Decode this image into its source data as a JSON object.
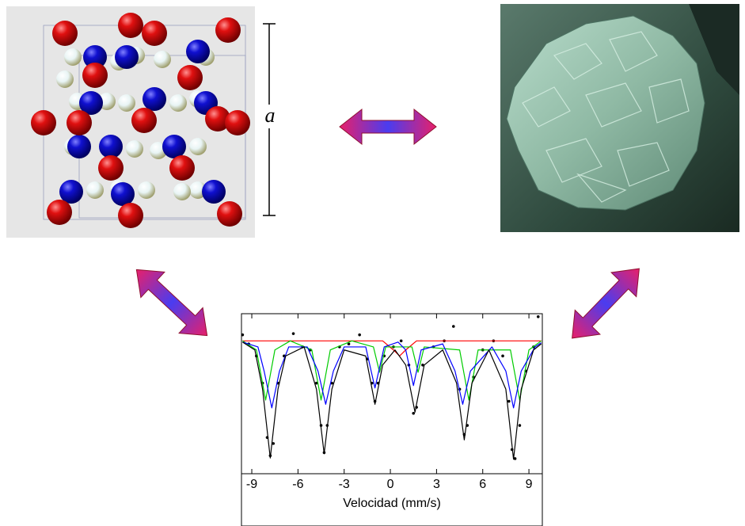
{
  "crystal_label": "a",
  "chart_data": {
    "type": "line",
    "xlabel": "Velocidad (mm/s)",
    "xlim": [
      -9.67,
      9.87
    ],
    "xticks": [
      -9,
      -6,
      -3,
      0,
      3,
      6,
      9
    ],
    "ylim": [
      0.78,
      1.045
    ],
    "series": [
      {
        "type": "scatter",
        "color": "#000000",
        "x": [
          -9.6,
          -9.2,
          -8.7,
          -8.3,
          -8.0,
          -7.8,
          -7.6,
          -7.3,
          -6.9,
          -6.3,
          -5.7,
          -5.2,
          -4.8,
          -4.5,
          -4.3,
          -4.1,
          -3.8,
          -3.3,
          -2.7,
          -2.0,
          -1.5,
          -1.2,
          -1.0,
          -0.8,
          -0.4,
          0.2,
          0.7,
          1.2,
          1.5,
          1.7,
          2.1,
          2.8,
          3.5,
          4.1,
          4.5,
          4.8,
          5.0,
          5.4,
          6.0,
          6.7,
          7.3,
          7.7,
          7.9,
          8.1,
          8.4,
          8.8,
          9.3,
          9.6
        ],
        "values": [
          1.01,
          0.995,
          0.975,
          0.93,
          0.84,
          0.81,
          0.83,
          0.93,
          0.975,
          1.012,
          0.99,
          0.985,
          0.93,
          0.86,
          0.815,
          0.86,
          0.93,
          0.99,
          0.995,
          1.01,
          0.97,
          0.93,
          0.9,
          0.93,
          0.975,
          0.99,
          1.0,
          0.96,
          0.88,
          0.89,
          0.96,
          0.99,
          1.0,
          1.024,
          0.92,
          0.845,
          0.86,
          0.94,
          0.985,
          1.0,
          0.975,
          0.9,
          0.82,
          0.805,
          0.86,
          0.95,
          0.99,
          1.04
        ]
      },
      {
        "type": "line",
        "color": "#ff0000",
        "x": [
          -9.6,
          -0.5,
          0.2,
          0.6,
          1.0,
          1.7,
          9.8
        ],
        "values": [
          1.0,
          1.0,
          0.985,
          0.975,
          0.985,
          1.0,
          1.0
        ]
      },
      {
        "type": "line",
        "color": "#00cc00",
        "x": [
          -9.6,
          -8.7,
          -8.1,
          -7.5,
          -6.5,
          -5.1,
          -4.5,
          -3.9,
          -2.5,
          -1.1,
          -0.7,
          -0.3,
          1.4,
          1.8,
          2.2,
          4.5,
          5.1,
          5.7,
          7.8,
          8.4,
          9.0,
          9.8
        ],
        "values": [
          1.0,
          0.985,
          0.902,
          0.985,
          1.0,
          0.985,
          0.902,
          0.985,
          1.0,
          0.99,
          0.948,
          0.99,
          0.99,
          0.948,
          0.99,
          0.985,
          0.902,
          0.985,
          0.985,
          0.902,
          0.985,
          1.0
        ]
      },
      {
        "type": "line",
        "color": "#0000ff",
        "x": [
          -9.6,
          -8.6,
          -8.2,
          -7.7,
          -7.2,
          -6.6,
          -5.4,
          -4.7,
          -4.2,
          -3.7,
          -3.0,
          -1.6,
          -1.0,
          -0.4,
          0.5,
          1.0,
          1.5,
          2.0,
          3.4,
          4.2,
          4.7,
          5.2,
          6.6,
          7.5,
          8.0,
          8.5,
          9.4,
          9.8
        ],
        "values": [
          0.998,
          0.99,
          0.95,
          0.889,
          0.95,
          0.99,
          0.99,
          0.95,
          0.895,
          0.95,
          0.99,
          0.99,
          0.922,
          0.99,
          0.998,
          0.985,
          0.926,
          0.985,
          0.995,
          0.95,
          0.895,
          0.95,
          0.99,
          0.95,
          0.889,
          0.95,
          0.99,
          0.997
        ]
      },
      {
        "type": "line",
        "color": "#000000",
        "x": [
          -9.6,
          -8.8,
          -8.3,
          -7.8,
          -7.3,
          -6.8,
          -5.6,
          -4.8,
          -4.3,
          -3.8,
          -3.0,
          -1.6,
          -1.0,
          -0.5,
          0.3,
          1.0,
          1.6,
          2.2,
          3.4,
          4.3,
          4.8,
          5.3,
          6.4,
          7.5,
          8.0,
          8.5,
          9.3,
          9.8
        ],
        "values": [
          0.998,
          0.985,
          0.92,
          0.806,
          0.92,
          0.975,
          0.99,
          0.92,
          0.813,
          0.92,
          0.985,
          0.975,
          0.895,
          0.96,
          0.985,
          0.96,
          0.882,
          0.96,
          0.985,
          0.93,
          0.836,
          0.93,
          0.985,
          0.92,
          0.804,
          0.92,
          0.985,
          0.995
        ]
      }
    ]
  }
}
